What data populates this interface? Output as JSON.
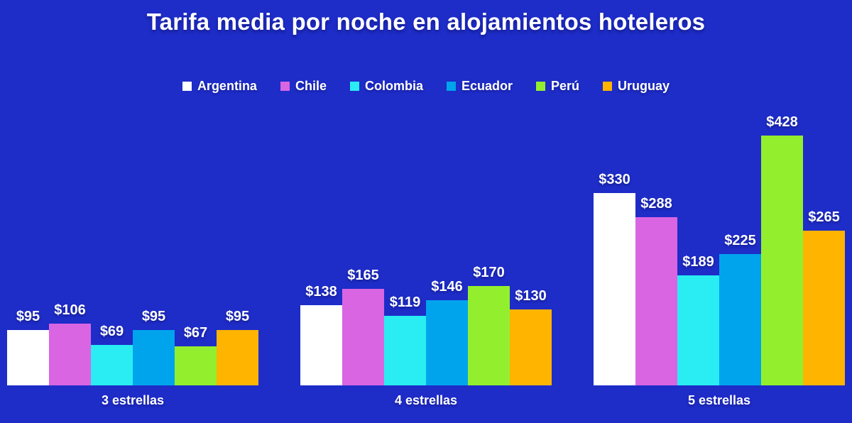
{
  "colors": {
    "background": "#1E2CC8",
    "text": "#FFFFFF"
  },
  "chart_data": {
    "type": "bar",
    "title": "Tarifa media por noche en alojamientos hoteleros",
    "categories": [
      "3 estrellas",
      "4 estrellas",
      "5 estrellas"
    ],
    "series": [
      {
        "name": "Argentina",
        "color": "#FFFFFF",
        "values": [
          95,
          138,
          330
        ],
        "labels": [
          "$95",
          "$138",
          "$330"
        ]
      },
      {
        "name": "Chile",
        "color": "#D965E3",
        "values": [
          106,
          165,
          288
        ],
        "labels": [
          "$106",
          "$165",
          "$288"
        ]
      },
      {
        "name": "Colombia",
        "color": "#29EDF3",
        "values": [
          69,
          119,
          189
        ],
        "labels": [
          "$69",
          "$119",
          "$189"
        ]
      },
      {
        "name": "Ecuador",
        "color": "#00A4EC",
        "values": [
          95,
          146,
          225
        ],
        "labels": [
          "$95",
          "$146",
          "$225"
        ]
      },
      {
        "name": "Perú",
        "color": "#93EF2E",
        "values": [
          67,
          170,
          428
        ],
        "labels": [
          "$67",
          "$170",
          "$428"
        ]
      },
      {
        "name": "Uruguay",
        "color": "#FFB400",
        "values": [
          95,
          130,
          265
        ],
        "labels": [
          "$95",
          "$130",
          "$265"
        ]
      }
    ],
    "value_prefix": "$",
    "ylim": [
      0,
      428
    ],
    "grid": false,
    "legend_position": "top",
    "xlabel": "",
    "ylabel": ""
  }
}
